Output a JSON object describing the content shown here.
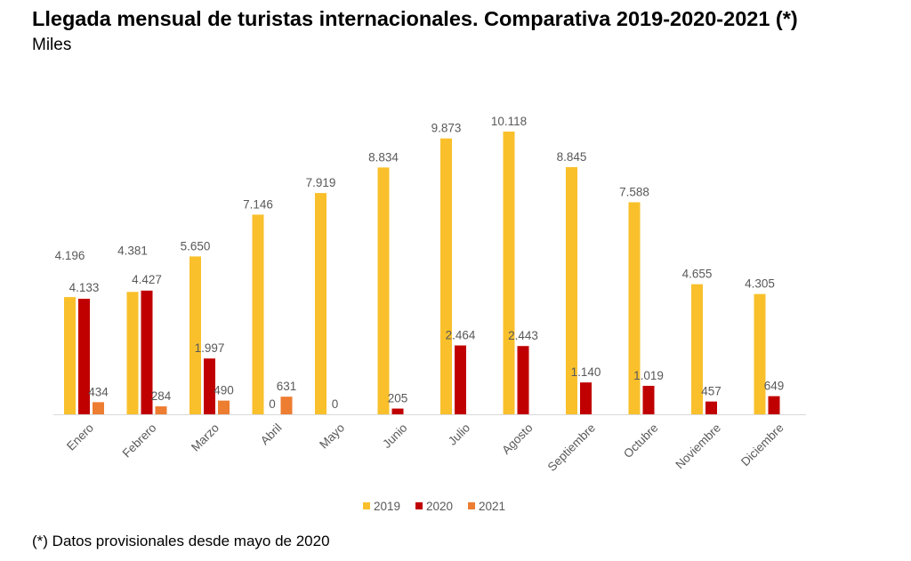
{
  "title": "Llegada mensual de turistas internacionales. Comparativa 2019-2020-2021 (*)",
  "subtitle": "Miles",
  "footnote": "(*) Datos provisionales desde mayo de 2020",
  "chart_data": {
    "type": "bar",
    "categories": [
      "Enero",
      "Febrero",
      "Marzo",
      "Abril",
      "Mayo",
      "Junio",
      "Julio",
      "Agosto",
      "Septiembre",
      "Octubre",
      "Noviembre",
      "Diciembre"
    ],
    "series": [
      {
        "name": "2019",
        "color": "#F9C02C",
        "values": [
          4196,
          4381,
          5650,
          7146,
          7919,
          8834,
          9873,
          10118,
          8845,
          7588,
          4655,
          4305
        ],
        "labels": [
          "4.196",
          "4.381",
          "5.650",
          "7.146",
          "7.919",
          "8.834",
          "9.873",
          "10.118",
          "8.845",
          "7.588",
          "4.655",
          "4.305"
        ]
      },
      {
        "name": "2020",
        "color": "#C00000",
        "values": [
          4133,
          4427,
          1997,
          0,
          0,
          205,
          2464,
          2443,
          1140,
          1019,
          457,
          649
        ],
        "labels": [
          "4.133",
          "4.427",
          "1.997",
          "0",
          "0",
          "205",
          "2.464",
          "2.443",
          "1.140",
          "1.019",
          "457",
          "649"
        ]
      },
      {
        "name": "2021",
        "color": "#ED7D31",
        "values": [
          434,
          284,
          490,
          631,
          null,
          null,
          null,
          null,
          null,
          null,
          null,
          null
        ],
        "labels": [
          "434",
          "284",
          "490",
          "631",
          "",
          "",
          "",
          "",
          "",
          "",
          "",
          ""
        ]
      }
    ],
    "ylim": [
      0,
      10500
    ],
    "grid": false,
    "legend": "bottom"
  }
}
